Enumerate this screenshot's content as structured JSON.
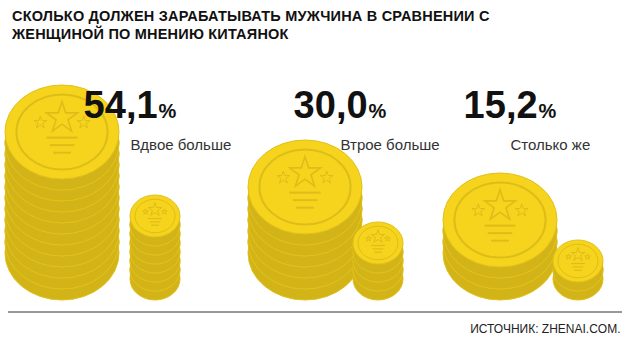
{
  "chart_data": {
    "type": "bar",
    "title": "СКОЛЬКО ДОЛЖЕН ЗАРАБАТЫВАТЬ МУЖЧИНА В СРАВНЕНИИ С ЖЕНЩИНОЙ ПО МНЕНИЮ КИТАЯНОК",
    "categories": [
      "Вдвое больше",
      "Втрое больше",
      "Столько же"
    ],
    "values": [
      54.1,
      30.0,
      15.2
    ],
    "value_labels": [
      "54,1%",
      "30,0%",
      "15,2%"
    ],
    "data_labels": true,
    "tick_labels": false,
    "color": "#f6d31c",
    "source": "ИСТОЧНИК: ZHENAI.COM."
  }
}
